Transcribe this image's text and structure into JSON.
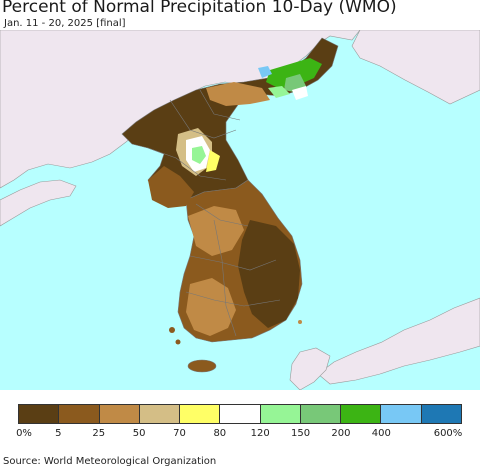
{
  "header": {
    "title": "Percent of Normal Precipitation 10-Day (WMO)",
    "subtitle": "Jan. 11 - 20, 2025 [final]"
  },
  "map": {
    "ocean_color": "#b7ffff",
    "land_outside_color": "#efe6ef",
    "border_color": "#777777"
  },
  "legend": {
    "colors": [
      "#5a3e14",
      "#8b5a1e",
      "#c08a46",
      "#d4be86",
      "#ffff66",
      "#ffffff",
      "#96f596",
      "#78c878",
      "#3cb414",
      "#78c8f5",
      "#1e78b4"
    ],
    "labels": [
      "0%",
      "5",
      "25",
      "50",
      "70",
      "80",
      "120",
      "150",
      "200",
      "400",
      "600%"
    ]
  },
  "footer": {
    "source": "Source: World Meteorological Organization"
  }
}
